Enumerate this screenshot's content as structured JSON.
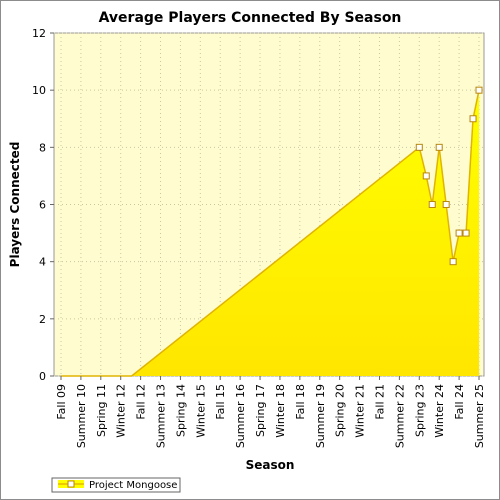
{
  "chart_data": {
    "type": "area",
    "title": "Average Players Connected By Season",
    "xlabel": "Season",
    "ylabel": "Players Connected",
    "ylim": [
      0,
      12
    ],
    "yticks": [
      0,
      2,
      4,
      6,
      8,
      10,
      12
    ],
    "categories": [
      "Fall 09",
      "Summer 10",
      "Spring 11",
      "Winter 12",
      "Fall 12",
      "Summer 13",
      "Spring 14",
      "Winter 15",
      "Fall 15",
      "Summer 16",
      "Spring 17",
      "Winter 18",
      "Fall 18",
      "Summer 19",
      "Spring 20",
      "Winter 21",
      "Fall 21",
      "Summer 22",
      "Spring 23",
      "Winter 24",
      "Fall 24",
      "Summer 25"
    ],
    "grid": true,
    "legend": "bottom-left",
    "series": [
      {
        "name": "Project Mongoose",
        "color": "#ffff00",
        "points": [
          {
            "x": 0.0,
            "y": 0
          },
          {
            "x": 3.55,
            "y": 0
          },
          {
            "x": 18.0,
            "y": 8,
            "marker": true
          },
          {
            "x": 18.35,
            "y": 7,
            "marker": true
          },
          {
            "x": 18.65,
            "y": 6,
            "marker": true
          },
          {
            "x": 19.0,
            "y": 8,
            "marker": true
          },
          {
            "x": 19.35,
            "y": 6,
            "marker": true
          },
          {
            "x": 19.7,
            "y": 4,
            "marker": true
          },
          {
            "x": 20.0,
            "y": 5,
            "marker": true
          },
          {
            "x": 20.35,
            "y": 5,
            "marker": true
          },
          {
            "x": 20.7,
            "y": 9,
            "marker": true
          },
          {
            "x": 21.0,
            "y": 10,
            "marker": true
          }
        ]
      }
    ]
  }
}
